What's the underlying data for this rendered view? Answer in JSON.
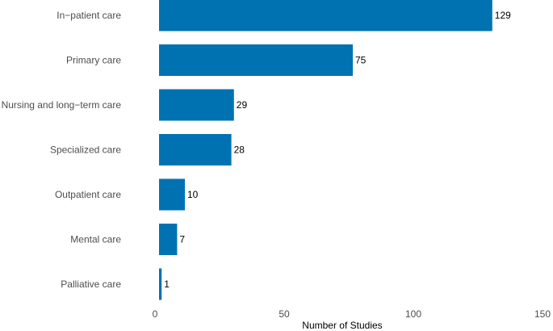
{
  "chart_data": {
    "type": "bar",
    "orientation": "horizontal",
    "categories": [
      "In−patient care",
      "Primary care",
      "Nursing and long−term care",
      "Specialized care",
      "Outpatient care",
      "Mental care",
      "Palliative care"
    ],
    "values": [
      129,
      75,
      29,
      28,
      10,
      7,
      1
    ],
    "title": "",
    "xlabel": "Number of Studies",
    "ylabel": "",
    "xlim": [
      0,
      150
    ],
    "xticks": [
      0,
      50,
      100,
      150
    ],
    "xtick_labels": [
      "0",
      "50",
      "100",
      "150"
    ],
    "bar_color": "#0072b2",
    "grid": false,
    "legend": "none",
    "data_labels": true
  }
}
